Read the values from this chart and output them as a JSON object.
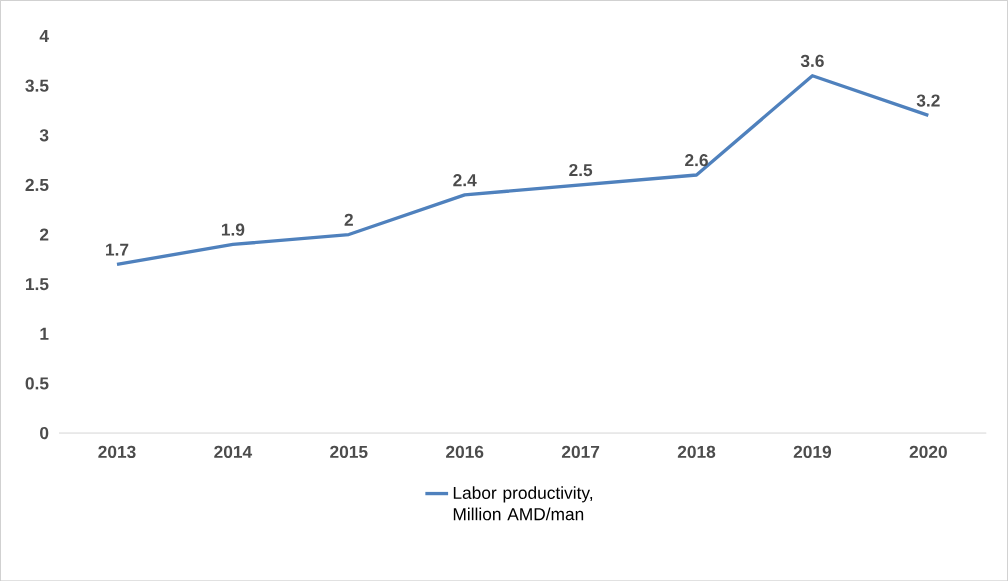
{
  "chart_data": {
    "type": "line",
    "categories": [
      "2013",
      "2014",
      "2015",
      "2016",
      "2017",
      "2018",
      "2019",
      "2020"
    ],
    "series": [
      {
        "name": "Labor productivity, Million AMD/man",
        "color": "#4f81bd",
        "values": [
          1.7,
          1.9,
          2,
          2.4,
          2.5,
          2.6,
          3.6,
          3.2
        ]
      }
    ],
    "ylim": [
      0,
      4
    ],
    "yticks": [
      0,
      0.5,
      1,
      1.5,
      2,
      2.5,
      3,
      3.5,
      4
    ],
    "data_labels": true,
    "legend": "bottom"
  }
}
